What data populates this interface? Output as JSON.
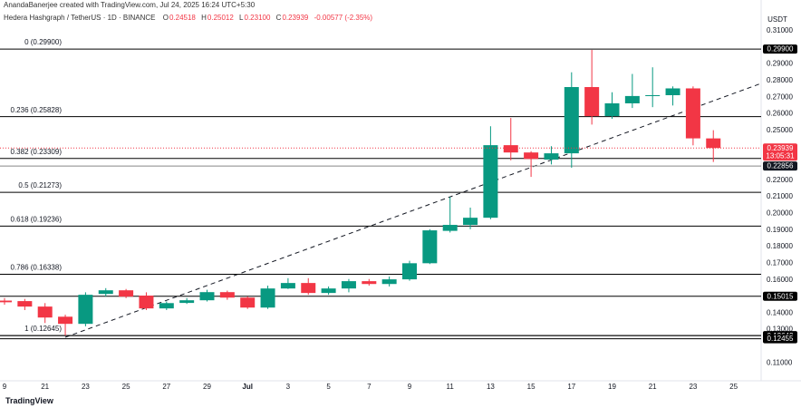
{
  "header": {
    "credit": "AnandaBanerjee created with TradingView.com, Jul 24, 2025 16:24 UTC+5:30",
    "symbol": "Hedera Hashgraph / TetherUS · 1D · BINANCE",
    "ohlc": [
      {
        "label": "O",
        "value": "0.24518"
      },
      {
        "label": "H",
        "value": "0.25012"
      },
      {
        "label": "L",
        "value": "0.23100"
      },
      {
        "label": "C",
        "value": "0.23939"
      }
    ],
    "change": "-0.00577 (-2.35%)",
    "logo": "TradingView"
  },
  "chart_data": {
    "type": "candlestick",
    "currency": "USDT",
    "categories": [
      "9",
      null,
      "21",
      null,
      "23",
      null,
      "25",
      null,
      "27",
      null,
      "29",
      null,
      "Jul",
      null,
      "3",
      null,
      "5",
      null,
      "7",
      null,
      "9",
      null,
      "11",
      null,
      "13",
      null,
      "15",
      null,
      "17",
      null,
      "19",
      null,
      "21",
      null,
      "23",
      null,
      "25"
    ],
    "open": [
      0.1475,
      0.1472,
      0.1439,
      0.1378,
      0.1335,
      0.1515,
      0.1537,
      0.1505,
      0.1428,
      0.1461,
      0.1477,
      0.1526,
      0.1493,
      0.1433,
      0.1548,
      0.1581,
      0.1521,
      0.1548,
      0.1592,
      0.1575,
      0.1603,
      0.17,
      0.1895,
      0.1931,
      0.1974,
      0.2411,
      0.2367,
      0.2324,
      0.2362,
      0.2761,
      0.2586,
      0.2663,
      0.2707,
      0.2712,
      0.2753,
      0.24518,
      null
    ],
    "high": [
      0.149,
      0.1485,
      0.146,
      0.139,
      0.1525,
      0.155,
      0.1545,
      0.1525,
      0.147,
      0.149,
      0.154,
      0.1535,
      0.15,
      0.1565,
      0.161,
      0.161,
      0.156,
      0.1605,
      0.1605,
      0.162,
      0.1715,
      0.1905,
      0.21,
      0.2035,
      0.2525,
      0.2575,
      0.2375,
      0.2405,
      0.285,
      0.2985,
      0.273,
      0.284,
      0.288,
      0.2765,
      0.2765,
      0.25012,
      null
    ],
    "low": [
      0.145,
      0.1418,
      0.134,
      0.1265,
      0.132,
      0.15,
      0.149,
      0.1418,
      0.1418,
      0.1455,
      0.147,
      0.148,
      0.1425,
      0.1425,
      0.1545,
      0.151,
      0.151,
      0.1525,
      0.1565,
      0.156,
      0.1595,
      0.1695,
      0.1885,
      0.1905,
      0.1965,
      0.232,
      0.222,
      0.2295,
      0.2275,
      0.2535,
      0.257,
      0.2635,
      0.264,
      0.265,
      0.241,
      0.231,
      null
    ],
    "close": [
      0.1465,
      0.1439,
      0.1373,
      0.1335,
      0.151,
      0.1537,
      0.1499,
      0.1428,
      0.146,
      0.1477,
      0.1526,
      0.1493,
      0.1433,
      0.1548,
      0.1581,
      0.1521,
      0.1548,
      0.1592,
      0.1575,
      0.1603,
      0.17,
      0.1898,
      0.1931,
      0.1974,
      0.2411,
      0.2367,
      0.2328,
      0.2362,
      0.2761,
      0.2586,
      0.2663,
      0.2707,
      0.2712,
      0.2753,
      0.2452,
      0.23939,
      null
    ],
    "up_color": "#089981",
    "down_color": "#f23645",
    "ylim": [
      0.0992,
      0.3187
    ],
    "yticks": [
      {
        "value": 0.11,
        "label": "0.11000"
      },
      {
        "value": 0.13,
        "label": "0.13000"
      },
      {
        "value": 0.14,
        "label": "0.14000"
      },
      {
        "value": 0.16,
        "label": "0.16000"
      },
      {
        "value": 0.17,
        "label": "0.17000"
      },
      {
        "value": 0.18,
        "label": "0.18000"
      },
      {
        "value": 0.19,
        "label": "0.19000"
      },
      {
        "value": 0.2,
        "label": "0.20000"
      },
      {
        "value": 0.21,
        "label": "0.21000"
      },
      {
        "value": 0.22,
        "label": "0.22000"
      },
      {
        "value": 0.25,
        "label": "0.25000"
      },
      {
        "value": 0.26,
        "label": "0.26000"
      },
      {
        "value": 0.27,
        "label": "0.27000"
      },
      {
        "value": 0.28,
        "label": "0.28000"
      },
      {
        "value": 0.29,
        "label": "0.29000"
      },
      {
        "value": 0.31,
        "label": "0.31000"
      }
    ],
    "grid": false,
    "fib_levels": [
      {
        "value": 0.299,
        "label": "0 (0.29900)"
      },
      {
        "value": 0.25828,
        "label": "0.236 (0.25828)"
      },
      {
        "value": 0.23309,
        "label": "0.382 (0.23309)"
      },
      {
        "value": 0.21273,
        "label": "0.5 (0.21273)"
      },
      {
        "value": 0.19236,
        "label": "0.618 (0.19236)"
      },
      {
        "value": 0.16338,
        "label": "0.786 (0.16338)"
      },
      {
        "value": 0.12645,
        "label": "1 (0.12645)"
      }
    ],
    "price_tags": [
      {
        "value": 0.299,
        "label": "0.29900",
        "color": "#000000"
      },
      {
        "value": 0.22856,
        "label": "0.22856",
        "color": "#131722"
      },
      {
        "value": 0.15015,
        "label": "0.15015",
        "color": "#000000"
      },
      {
        "value": 0.12642,
        "label": "0.12642",
        "color": "#000000"
      },
      {
        "value": 0.12455,
        "label": "0.12455",
        "color": "#000000"
      }
    ],
    "last_price": {
      "value": 0.23939,
      "label": "0.23939",
      "countdown": "13:05:31",
      "color": "#f23645"
    }
  }
}
